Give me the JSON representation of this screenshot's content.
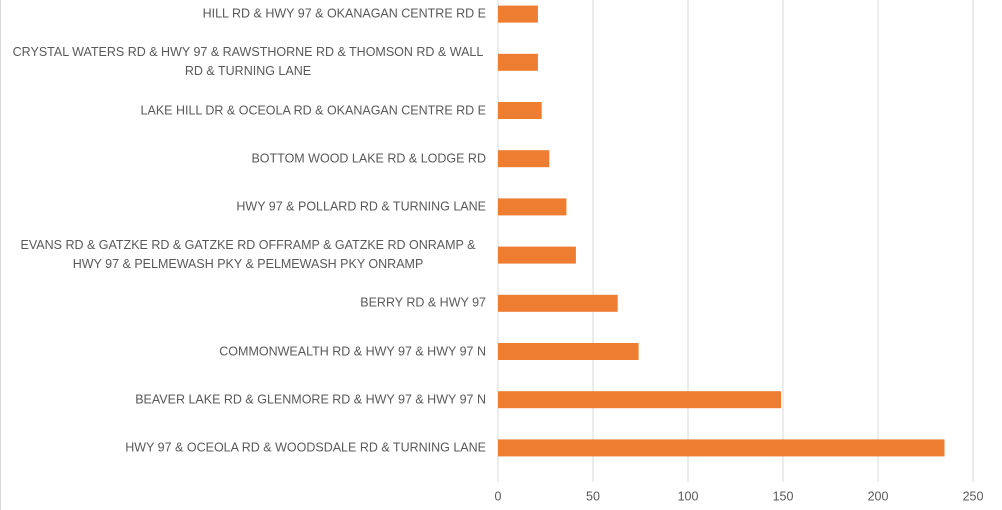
{
  "chart_data": {
    "type": "barh",
    "categories": [
      "HILL RD & HWY 97 & OKANAGAN CENTRE RD E",
      "CRYSTAL WATERS RD & HWY 97 & RAWSTHORNE RD & THOMSON RD & WALL RD & TURNING LANE",
      "LAKE HILL DR & OCEOLA RD & OKANAGAN CENTRE RD E",
      "BOTTOM WOOD LAKE RD & LODGE RD",
      "HWY 97 & POLLARD RD & TURNING LANE",
      "EVANS RD & GATZKE RD & GATZKE RD OFFRAMP & GATZKE RD ONRAMP & HWY 97 & PELMEWASH PKY & PELMEWASH PKY ONRAMP",
      "BERRY RD & HWY 97",
      "COMMONWEALTH RD & HWY 97 & HWY 97 N",
      "BEAVER LAKE RD & GLENMORE RD & HWY 97 & HWY 97 N",
      "HWY 97 & OCEOLA RD & WOODSDALE RD & TURNING LANE"
    ],
    "values": [
      21,
      21,
      23,
      27,
      36,
      41,
      63,
      74,
      149,
      235
    ],
    "color": "#ed7d31",
    "xlim": [
      0,
      250
    ],
    "xticks": [
      0,
      50,
      100,
      150,
      200,
      250
    ],
    "grid": true
  }
}
